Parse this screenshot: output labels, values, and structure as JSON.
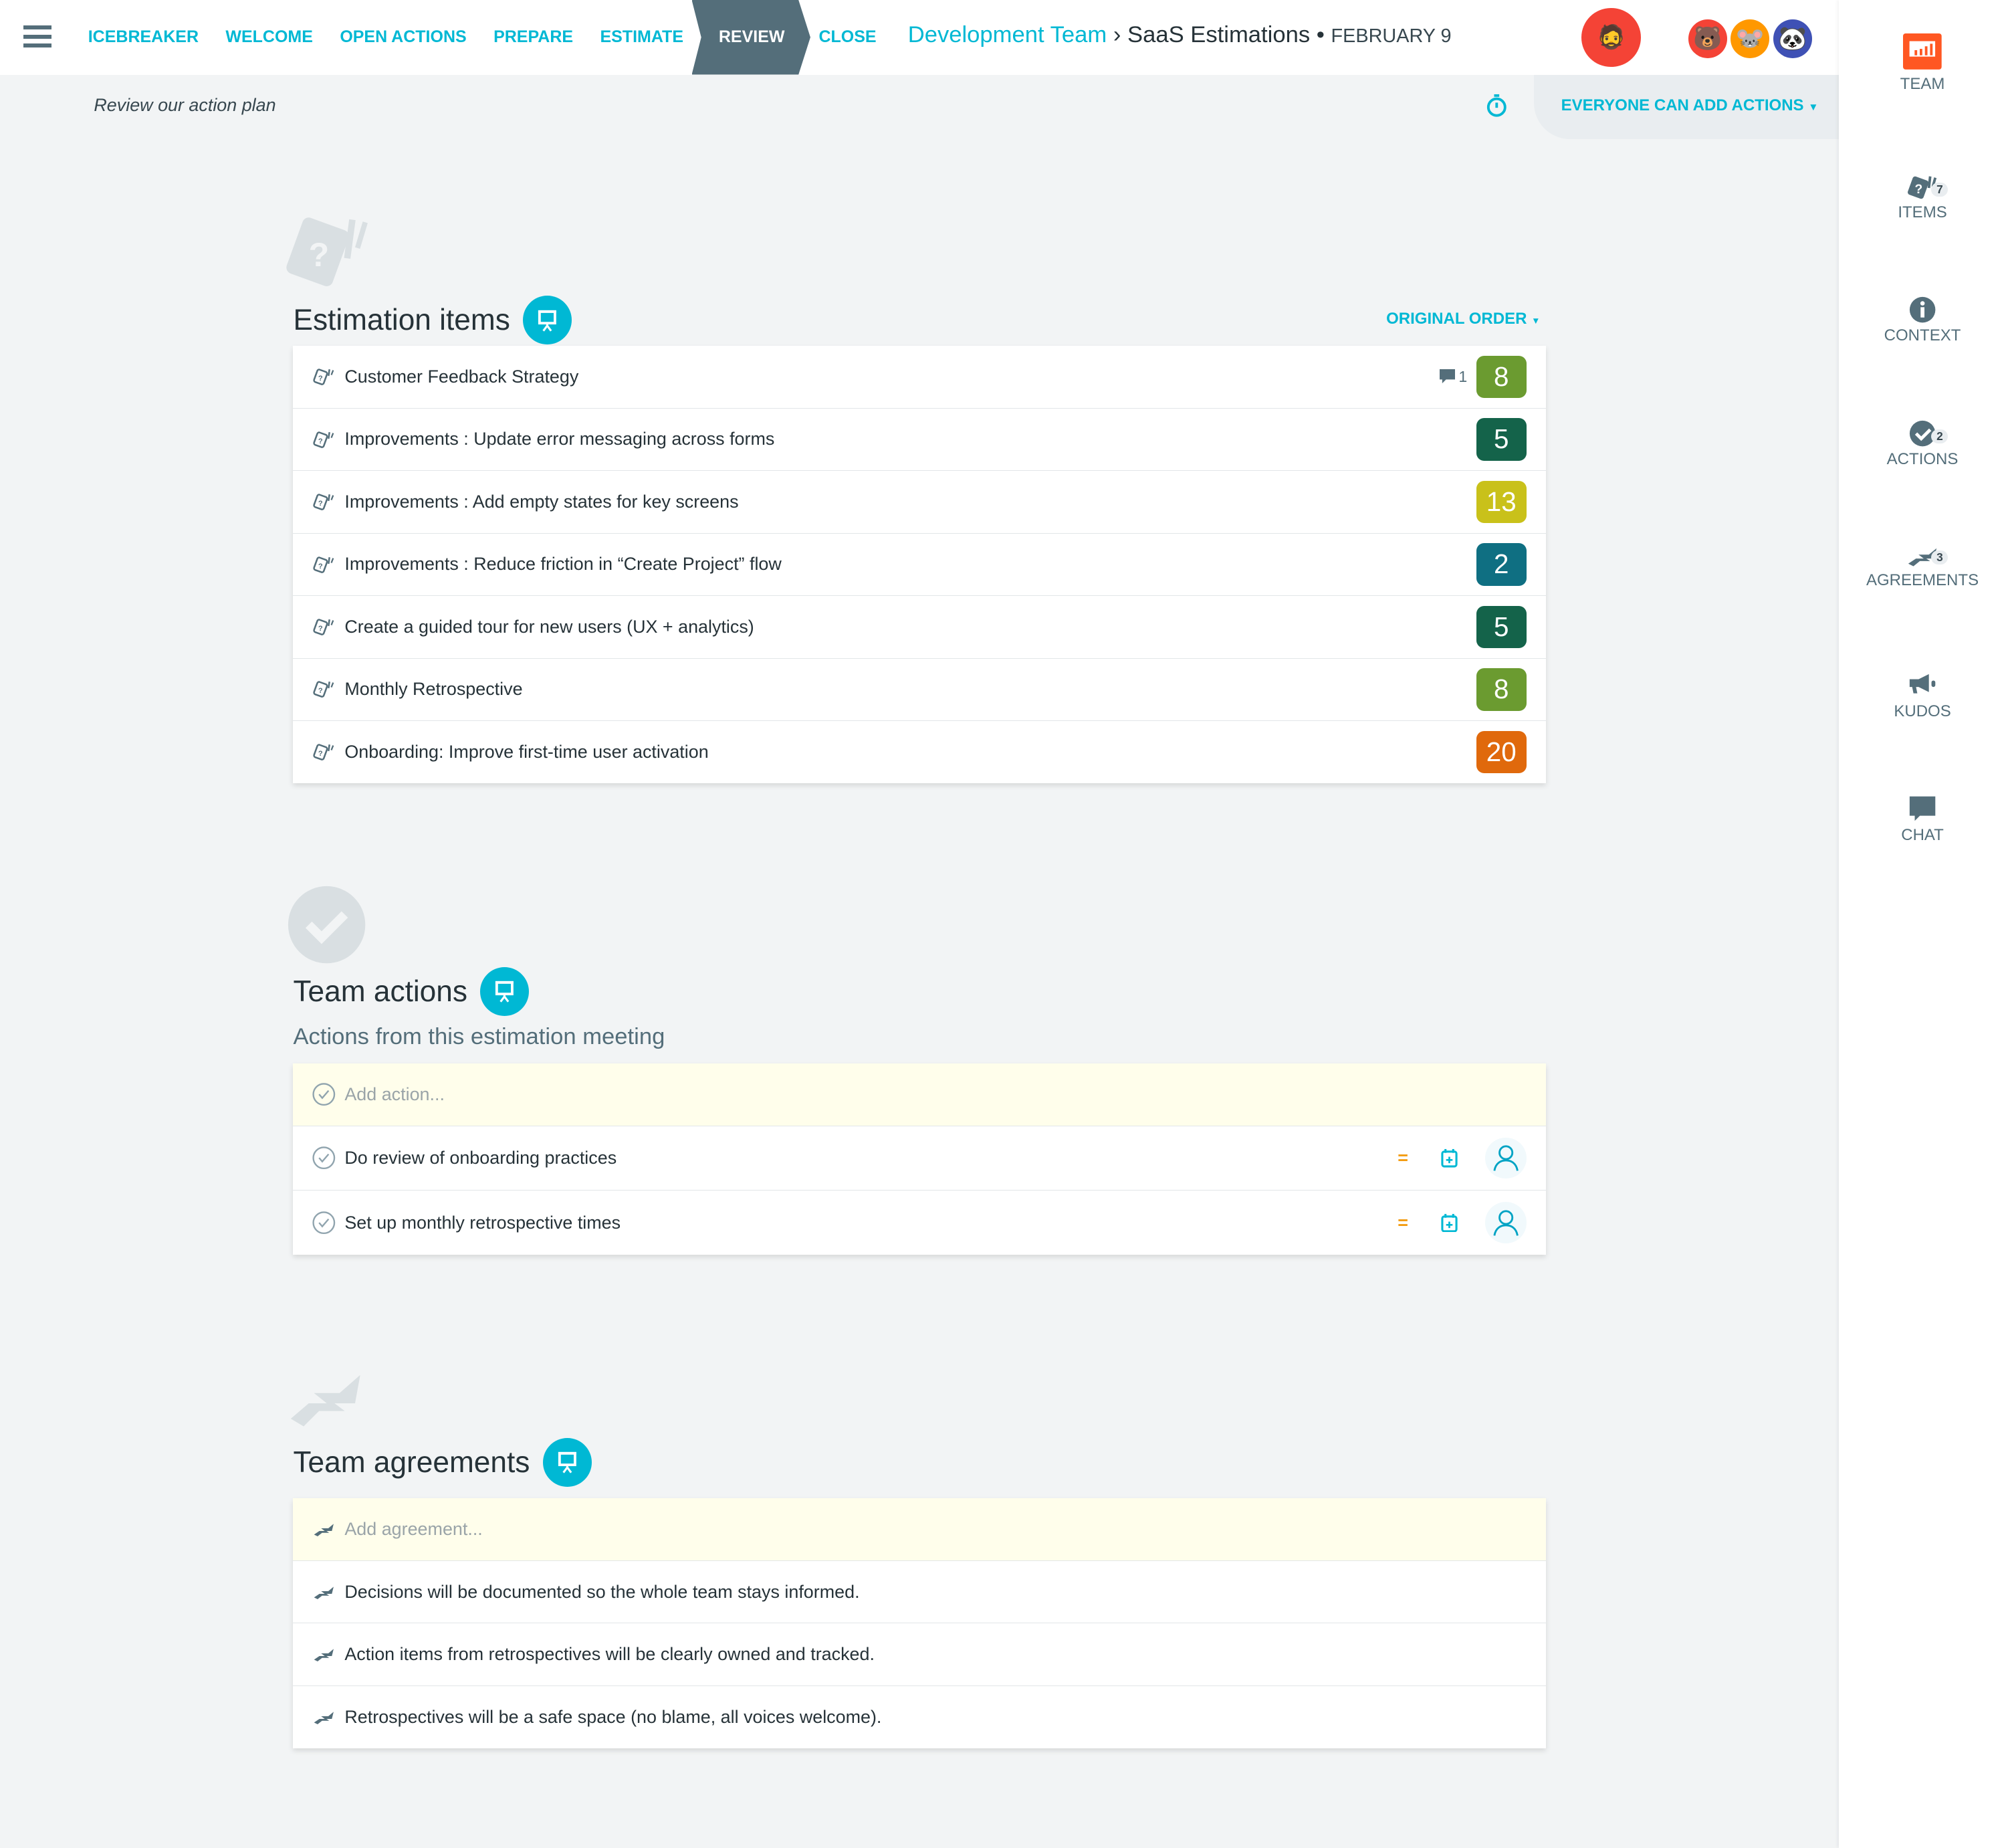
{
  "nav": {
    "items": [
      "ICEBREAKER",
      "WELCOME",
      "OPEN ACTIONS",
      "PREPARE",
      "ESTIMATE",
      "REVIEW",
      "CLOSE"
    ],
    "active": "REVIEW"
  },
  "breadcrumb": {
    "team": "Development Team",
    "separator": "›",
    "session": "SaaS Estimations",
    "bullet": "•",
    "date": "FEBRUARY 9"
  },
  "subheader": {
    "text": "Review our action plan",
    "permission": "EVERYONE CAN ADD ACTIONS"
  },
  "sidebar": {
    "items": [
      {
        "label": "TEAM",
        "icon": "presentation-icon"
      },
      {
        "label": "ITEMS",
        "icon": "cards-icon",
        "count": "7"
      },
      {
        "label": "CONTEXT",
        "icon": "info-icon"
      },
      {
        "label": "ACTIONS",
        "icon": "check-circle-icon",
        "count": "2"
      },
      {
        "label": "AGREEMENTS",
        "icon": "handshake-icon",
        "count": "3"
      },
      {
        "label": "KUDOS",
        "icon": "megaphone-icon"
      },
      {
        "label": "CHAT",
        "icon": "chat-icon"
      }
    ]
  },
  "estimation": {
    "title": "Estimation items",
    "order": "ORIGINAL ORDER",
    "items": [
      {
        "text": "Customer Feedback Strategy",
        "comments": "1",
        "estimate": "8",
        "color": "#6b9b30"
      },
      {
        "text": "Improvements : Update error messaging across forms",
        "estimate": "5",
        "color": "#14634a"
      },
      {
        "text": "Improvements : Add empty states for key screens",
        "estimate": "13",
        "color": "#c9c11a"
      },
      {
        "text": "Improvements : Reduce friction in “Create Project” flow",
        "estimate": "2",
        "color": "#0f6f82"
      },
      {
        "text": "Create a guided tour for new users (UX + analytics)",
        "estimate": "5",
        "color": "#14634a"
      },
      {
        "text": "Monthly Retrospective",
        "estimate": "8",
        "color": "#6b9b30"
      },
      {
        "text": "Onboarding: Improve first-time user activation",
        "estimate": "20",
        "color": "#e0690c"
      }
    ]
  },
  "actions": {
    "title": "Team actions",
    "subtitle": "Actions from this estimation meeting",
    "placeholder": "Add action...",
    "priority_symbol": "=",
    "items": [
      "Do review of onboarding practices",
      "Set up monthly retrospective times"
    ]
  },
  "agreements": {
    "title": "Team agreements",
    "placeholder": "Add agreement...",
    "items": [
      "Decisions will be documented so the whole team stays informed.",
      "Action items from retrospectives will be clearly owned and tracked.",
      "Retrospectives will be a safe space (no blame, all voices welcome)."
    ]
  },
  "colors": {
    "accent": "#00b8d4",
    "dark": "#546e7a",
    "background": "#f2f4f5"
  }
}
